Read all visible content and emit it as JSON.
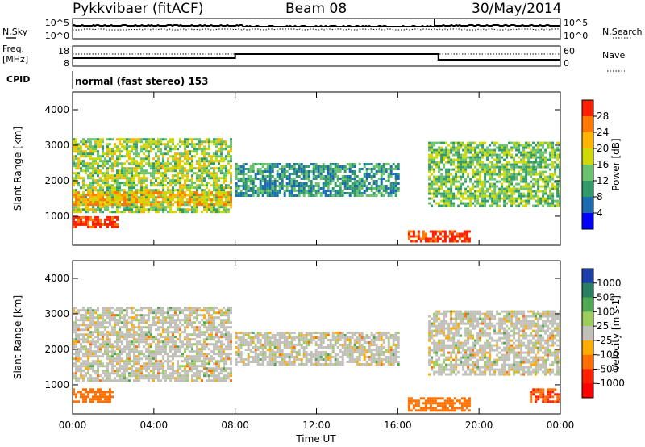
{
  "header": {
    "title": "Pykkvibaer (fitACF)",
    "beam": "Beam 08",
    "date": "30/May/2014"
  },
  "top_panels": {
    "nsky_label": "N.Sky",
    "nsky_ticks": [
      "10^5",
      "10^0"
    ],
    "nsearch_label": "N.Search",
    "nsearch_ticks": [
      "10^5",
      "10^0"
    ],
    "freq_label": "Freq.",
    "freq_unit": "[MHz]",
    "freq_ticks": [
      "18",
      "8"
    ],
    "nave_label": "Nave",
    "nave_ticks": [
      "60",
      "0"
    ],
    "cpid_label": "CPID",
    "cpid_value": "normal (fast stereo) 153",
    "freq_step": {
      "change_hour": 8.0,
      "revert_hour": 18.0
    }
  },
  "chart_data": [
    {
      "type": "heatmap",
      "quantity": "Power",
      "colorbar_label": "Power [dB]",
      "colorbar_ticks": [
        "28",
        "24",
        "20",
        "16",
        "12",
        "8",
        "4"
      ],
      "colorbar_colors": [
        "#ff1f00",
        "#ff7800",
        "#ffb400",
        "#cfd800",
        "#69c36d",
        "#2f9b69",
        "#1a6bb0",
        "#0000ff"
      ],
      "xlabel": "Time UT",
      "ylabel": "Slant Range [km]",
      "xlim": [
        0,
        24
      ],
      "ylim": [
        180,
        4500
      ],
      "x_tick_labels": [
        "00:00",
        "04:00",
        "08:00",
        "12:00",
        "16:00",
        "20:00",
        "00:00"
      ],
      "x_ticks": [
        0,
        4,
        8,
        12,
        16,
        20,
        24
      ],
      "y_ticks": [
        1000,
        2000,
        3000,
        4000
      ],
      "echo_regions": [
        {
          "t0": 0.0,
          "t1": 7.8,
          "r0": 1100,
          "r1": 3200,
          "mean_db": 14
        },
        {
          "t0": 0.0,
          "t1": 7.8,
          "r0": 1300,
          "r1": 1700,
          "mean_db": 20
        },
        {
          "t0": 0.0,
          "t1": 2.2,
          "r0": 700,
          "r1": 1000,
          "mean_db": 28
        },
        {
          "t0": 8.0,
          "t1": 16.0,
          "r0": 1600,
          "r1": 2500,
          "mean_db": 8
        },
        {
          "t0": 16.5,
          "t1": 19.5,
          "r0": 300,
          "r1": 600,
          "mean_db": 28
        },
        {
          "t0": 17.5,
          "t1": 24.0,
          "r0": 1300,
          "r1": 3100,
          "mean_db": 12
        }
      ]
    },
    {
      "type": "heatmap",
      "quantity": "Velocity",
      "colorbar_label": "Velocity [m s-1]",
      "colorbar_ticks": [
        "1000",
        "500",
        "100",
        "25",
        "-25",
        "-100",
        "-500",
        "-1000"
      ],
      "colorbar_colors": [
        "#1a3fa8",
        "#2a7f62",
        "#4fa852",
        "#9ccd5a",
        "#c0c0b8",
        "#ffaa00",
        "#ff7000",
        "#ff2000",
        "#ff0000"
      ],
      "xlabel": "Time UT",
      "ylabel": "Slant Range [km]",
      "xlim": [
        0,
        24
      ],
      "ylim": [
        180,
        4500
      ],
      "x_tick_labels": [
        "00:00",
        "04:00",
        "08:00",
        "12:00",
        "16:00",
        "20:00",
        "00:00"
      ],
      "x_ticks": [
        0,
        4,
        8,
        12,
        16,
        20,
        24
      ],
      "y_ticks": [
        1000,
        2000,
        3000,
        4000
      ],
      "echo_regions": [
        {
          "t0": 0.0,
          "t1": 7.8,
          "r0": 1100,
          "r1": 3200,
          "mean_v": 0
        },
        {
          "t0": 0.0,
          "t1": 2.0,
          "r0": 550,
          "r1": 900,
          "mean_v": -400
        },
        {
          "t0": 8.0,
          "t1": 16.0,
          "r0": 1600,
          "r1": 2500,
          "mean_v": 0
        },
        {
          "t0": 16.5,
          "t1": 19.5,
          "r0": 300,
          "r1": 650,
          "mean_v": -300
        },
        {
          "t0": 17.5,
          "t1": 24.0,
          "r0": 1300,
          "r1": 3100,
          "mean_v": 0
        },
        {
          "t0": 22.5,
          "t1": 24.0,
          "r0": 500,
          "r1": 900,
          "mean_v": -500
        }
      ]
    }
  ]
}
